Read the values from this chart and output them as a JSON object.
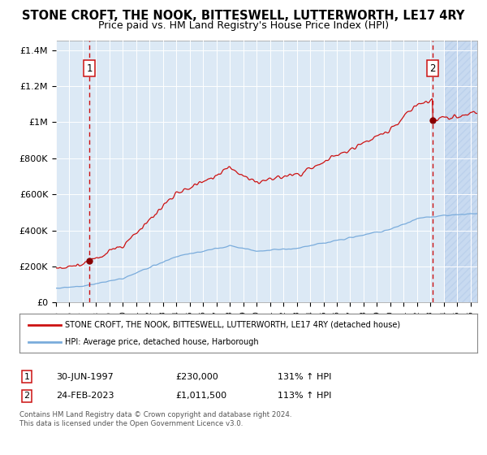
{
  "title": "STONE CROFT, THE NOOK, BITTESWELL, LUTTERWORTH, LE17 4RY",
  "subtitle": "Price paid vs. HM Land Registry's House Price Index (HPI)",
  "legend_line1": "STONE CROFT, THE NOOK, BITTESWELL, LUTTERWORTH, LE17 4RY (detached house)",
  "legend_line2": "HPI: Average price, detached house, Harborough",
  "annotation1_label": "1",
  "annotation1_date": "30-JUN-1997",
  "annotation1_price": "£230,000",
  "annotation1_hpi": "131% ↑ HPI",
  "annotation2_label": "2",
  "annotation2_date": "24-FEB-2023",
  "annotation2_price": "£1,011,500",
  "annotation2_hpi": "113% ↑ HPI",
  "footer1": "Contains HM Land Registry data © Crown copyright and database right 2024.",
  "footer2": "This data is licensed under the Open Government Licence v3.0.",
  "hpi_color": "#7aacdc",
  "price_color": "#cc1111",
  "marker_color": "#880000",
  "dashed_color": "#cc1111",
  "bg_plot": "#dce9f5",
  "bg_hatch": "#c8daf0",
  "ylim": [
    0,
    1450000
  ],
  "xlim_start": 1995.0,
  "xlim_end": 2026.5,
  "sale1_year": 1997.5,
  "sale1_price": 230000,
  "sale2_year": 2023.15,
  "sale2_price": 1011500,
  "title_fontsize": 10.5,
  "subtitle_fontsize": 9.0,
  "hatch_start": 2024.0,
  "yticks": [
    0,
    200000,
    400000,
    600000,
    800000,
    1000000,
    1200000,
    1400000
  ],
  "ylabels": [
    "£0",
    "£200K",
    "£400K",
    "£600K",
    "£800K",
    "£1M",
    "£1.2M",
    "£1.4M"
  ]
}
